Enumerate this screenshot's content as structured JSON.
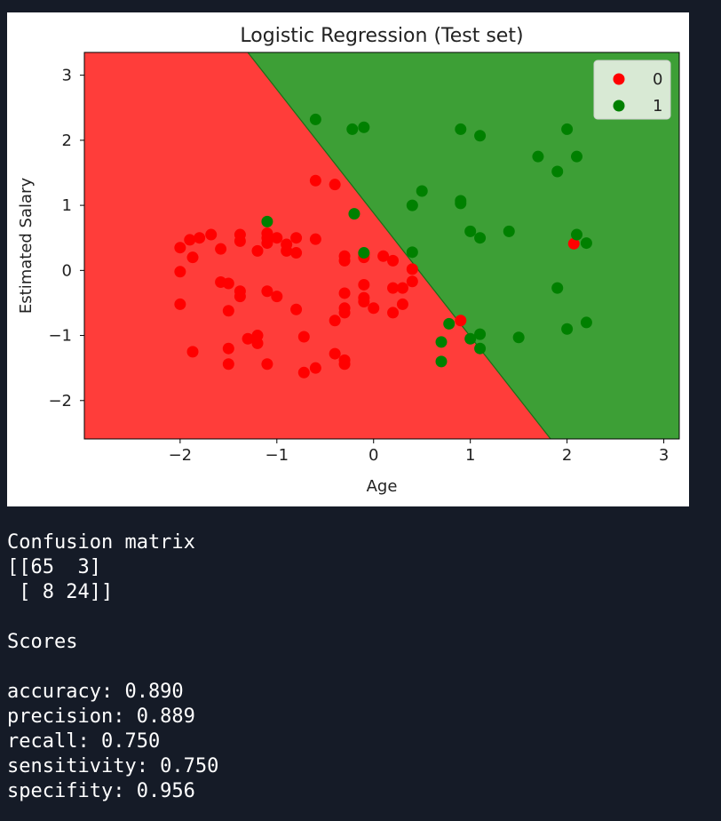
{
  "chart_data": {
    "type": "scatter",
    "title": "Logistic Regression (Test set)",
    "xlabel": "Age",
    "ylabel": "Estimated Salary",
    "xlim": [
      -2.99,
      3.16
    ],
    "ylim": [
      -2.59,
      3.35
    ],
    "xticks": [
      -2,
      -1,
      0,
      1,
      2,
      3
    ],
    "yticks": [
      -2,
      -1,
      0,
      1,
      2,
      3
    ],
    "decision_boundary": [
      [
        -1.3,
        3.35
      ],
      [
        1.83,
        -2.59
      ]
    ],
    "regions": [
      {
        "class": "0",
        "color": "#ff3d3a",
        "side": "left"
      },
      {
        "class": "1",
        "color": "#3d9f36",
        "side": "right"
      }
    ],
    "legend": {
      "placement": "top-right",
      "entries": [
        "0",
        "1"
      ]
    },
    "grid": false,
    "series": [
      {
        "name": "0",
        "color": "#ff0000",
        "points": [
          [
            -2.0,
            0.35
          ],
          [
            -2.0,
            -0.02
          ],
          [
            -2.0,
            -0.52
          ],
          [
            -1.9,
            0.47
          ],
          [
            -1.87,
            0.2
          ],
          [
            -1.87,
            -1.25
          ],
          [
            -1.8,
            0.5
          ],
          [
            -1.68,
            0.55
          ],
          [
            -1.58,
            0.33
          ],
          [
            -1.58,
            -0.18
          ],
          [
            -1.5,
            -0.2
          ],
          [
            -1.5,
            -0.62
          ],
          [
            -1.5,
            -1.2
          ],
          [
            -1.5,
            -1.44
          ],
          [
            -1.38,
            0.55
          ],
          [
            -1.38,
            0.45
          ],
          [
            -1.38,
            -0.32
          ],
          [
            -1.38,
            -0.4
          ],
          [
            -1.3,
            -1.05
          ],
          [
            -1.2,
            -1.0
          ],
          [
            -1.2,
            -1.12
          ],
          [
            -1.2,
            0.3
          ],
          [
            -1.1,
            0.57
          ],
          [
            -1.1,
            0.5
          ],
          [
            -1.1,
            0.42
          ],
          [
            -1.1,
            -0.32
          ],
          [
            -1.1,
            -1.44
          ],
          [
            -1.0,
            0.5
          ],
          [
            -1.0,
            -0.4
          ],
          [
            -0.9,
            0.4
          ],
          [
            -0.9,
            0.3
          ],
          [
            -0.8,
            0.5
          ],
          [
            -0.8,
            0.27
          ],
          [
            -0.8,
            -0.6
          ],
          [
            -0.72,
            -1.02
          ],
          [
            -0.72,
            -1.57
          ],
          [
            -0.6,
            1.38
          ],
          [
            -0.6,
            0.48
          ],
          [
            -0.6,
            -1.5
          ],
          [
            -0.4,
            1.32
          ],
          [
            -0.4,
            -0.77
          ],
          [
            -0.4,
            -1.28
          ],
          [
            -0.3,
            0.22
          ],
          [
            -0.3,
            0.15
          ],
          [
            -0.3,
            -0.35
          ],
          [
            -0.3,
            -0.58
          ],
          [
            -0.3,
            -0.65
          ],
          [
            -0.3,
            -1.38
          ],
          [
            -0.3,
            -1.44
          ],
          [
            -0.1,
            0.25
          ],
          [
            -0.1,
            0.2
          ],
          [
            -0.1,
            -0.22
          ],
          [
            -0.1,
            -0.42
          ],
          [
            -0.1,
            -0.48
          ],
          [
            0.0,
            -0.58
          ],
          [
            0.1,
            0.22
          ],
          [
            0.2,
            0.15
          ],
          [
            0.2,
            -0.27
          ],
          [
            0.2,
            -0.65
          ],
          [
            0.3,
            -0.27
          ],
          [
            0.3,
            -0.52
          ],
          [
            0.4,
            0.02
          ],
          [
            0.4,
            -0.17
          ],
          [
            0.9,
            -0.77
          ],
          [
            2.07,
            0.41
          ]
        ]
      },
      {
        "name": "1",
        "color": "#008000",
        "points": [
          [
            -1.1,
            0.75
          ],
          [
            -0.6,
            2.32
          ],
          [
            -0.22,
            2.17
          ],
          [
            -0.2,
            0.87
          ],
          [
            -0.1,
            2.2
          ],
          [
            -0.1,
            0.27
          ],
          [
            0.4,
            1.0
          ],
          [
            0.4,
            0.28
          ],
          [
            0.5,
            1.22
          ],
          [
            0.7,
            -1.1
          ],
          [
            0.7,
            -1.4
          ],
          [
            0.78,
            -0.82
          ],
          [
            0.9,
            2.17
          ],
          [
            0.9,
            1.07
          ],
          [
            0.9,
            1.03
          ],
          [
            1.0,
            0.6
          ],
          [
            1.0,
            -1.05
          ],
          [
            1.1,
            2.07
          ],
          [
            1.1,
            0.5
          ],
          [
            1.1,
            -0.98
          ],
          [
            1.1,
            -1.2
          ],
          [
            1.4,
            0.6
          ],
          [
            1.5,
            -1.03
          ],
          [
            1.7,
            1.75
          ],
          [
            1.9,
            1.52
          ],
          [
            1.9,
            -0.27
          ],
          [
            2.0,
            2.17
          ],
          [
            2.0,
            -0.9
          ],
          [
            2.1,
            1.75
          ],
          [
            2.1,
            0.55
          ],
          [
            2.2,
            0.42
          ],
          [
            2.2,
            -0.8
          ]
        ]
      }
    ]
  },
  "console": {
    "confusion_title": "Confusion matrix",
    "matrix_line_1": "[[65  3]",
    "matrix_line_2": " [ 8 24]]",
    "scores_title": "Scores",
    "accuracy": "accuracy: 0.890",
    "precision": "precision: 0.889",
    "recall": "recall: 0.750",
    "sensitivity": "sensitivity: 0.750",
    "specificity": "specifity: 0.956"
  }
}
